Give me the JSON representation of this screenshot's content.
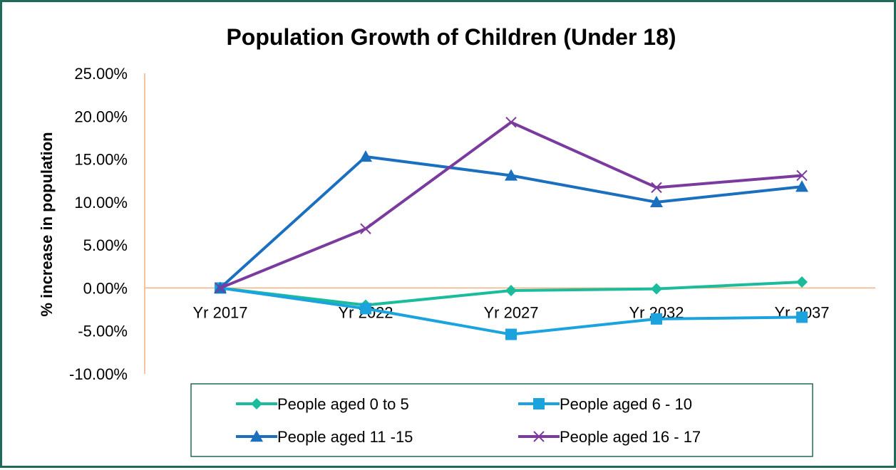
{
  "chart_data": {
    "type": "line",
    "title": "Population Growth of Children (Under 18)",
    "ylabel": "% increase in population",
    "xlabel": "",
    "categories": [
      "Yr 2017",
      "Yr 2022",
      "Yr 2027",
      "Yr 2032",
      "Yr 2037"
    ],
    "y_ticks": [
      "25.00%",
      "20.00%",
      "15.00%",
      "10.00%",
      "5.00%",
      "0.00%",
      "-5.00%",
      "-10.00%"
    ],
    "ylim": [
      -10,
      25
    ],
    "y_unit": "percent",
    "grid": false,
    "legend_position": "bottom",
    "axis_color": "#f4b183",
    "border_color": "#1e6b5a",
    "series": [
      {
        "name": "People aged 0 to 5",
        "values": [
          0,
          -2.0,
          -0.3,
          -0.1,
          0.7
        ],
        "color": "#1abc9c",
        "marker": "diamond"
      },
      {
        "name": "People aged 6 - 10",
        "values": [
          0,
          -2.4,
          -5.4,
          -3.6,
          -3.4
        ],
        "color": "#1aa3dd",
        "marker": "square"
      },
      {
        "name": "People aged 11 -15",
        "values": [
          0,
          15.3,
          13.1,
          10.0,
          11.8
        ],
        "color": "#1a6fbf",
        "marker": "triangle"
      },
      {
        "name": "People aged 16 - 17",
        "values": [
          0,
          6.9,
          19.3,
          11.7,
          13.1
        ],
        "color": "#7b3a9e",
        "marker": "x"
      }
    ]
  }
}
